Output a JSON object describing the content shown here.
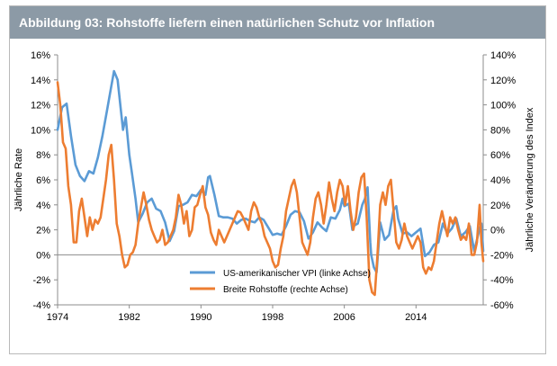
{
  "title": "Abbildung 03: Rohstoffe liefern einen natürlichen Schutz vor Inflation",
  "chart_data": {
    "type": "line",
    "title": "Abbildung 03: Rohstoffe liefern einen natürlichen Schutz vor Inflation",
    "ylabel_left": "Jährliche Rate",
    "ylabel_right": "Jährliche Veränderung des Index",
    "xlim": [
      1974,
      2021.5
    ],
    "ylim_left": [
      -4,
      16
    ],
    "ylim_right": [
      -60,
      140
    ],
    "x_ticks": [
      1974,
      1982,
      1990,
      1998,
      2006,
      2014
    ],
    "y_ticks_left": [
      "-4%",
      "-2%",
      "0%",
      "2%",
      "4%",
      "6%",
      "8%",
      "10%",
      "12%",
      "14%",
      "16%"
    ],
    "y_ticks_right": [
      "-60%",
      "-40%",
      "-20%",
      "0%",
      "20%",
      "40%",
      "60%",
      "80%",
      "100%",
      "120%",
      "140%"
    ],
    "grid": false,
    "legend_position": "bottom-center",
    "series": [
      {
        "name": "US-amerikanischer VPI (linke Achse)",
        "axis": "left",
        "color": "#5b9bd5",
        "points": [
          [
            1974,
            10.0
          ],
          [
            1974.5,
            11.8
          ],
          [
            1975,
            12.1
          ],
          [
            1975.5,
            9.5
          ],
          [
            1976,
            7.2
          ],
          [
            1976.5,
            6.3
          ],
          [
            1977,
            5.9
          ],
          [
            1977.5,
            6.7
          ],
          [
            1978,
            6.5
          ],
          [
            1978.5,
            7.8
          ],
          [
            1979,
            9.5
          ],
          [
            1979.5,
            11.5
          ],
          [
            1980,
            13.5
          ],
          [
            1980.3,
            14.7
          ],
          [
            1980.7,
            14.0
          ],
          [
            1981,
            12.0
          ],
          [
            1981.3,
            10.0
          ],
          [
            1981.6,
            11.0
          ],
          [
            1982,
            8.0
          ],
          [
            1982.3,
            6.5
          ],
          [
            1982.7,
            4.5
          ],
          [
            1983,
            2.6
          ],
          [
            1983.5,
            3.3
          ],
          [
            1984,
            4.2
          ],
          [
            1984.5,
            4.5
          ],
          [
            1985,
            3.7
          ],
          [
            1985.5,
            3.5
          ],
          [
            1986,
            2.6
          ],
          [
            1986.5,
            1.1
          ],
          [
            1987,
            1.9
          ],
          [
            1987.5,
            3.9
          ],
          [
            1988,
            4.0
          ],
          [
            1988.5,
            4.2
          ],
          [
            1989,
            4.8
          ],
          [
            1989.5,
            4.7
          ],
          [
            1990,
            5.2
          ],
          [
            1990.5,
            4.8
          ],
          [
            1990.8,
            6.2
          ],
          [
            1991,
            6.3
          ],
          [
            1991.5,
            4.8
          ],
          [
            1992,
            3.1
          ],
          [
            1992.5,
            3.0
          ],
          [
            1993,
            3.0
          ],
          [
            1993.5,
            2.9
          ],
          [
            1994,
            2.5
          ],
          [
            1994.5,
            2.8
          ],
          [
            1995,
            2.9
          ],
          [
            1995.5,
            2.7
          ],
          [
            1996,
            2.6
          ],
          [
            1996.5,
            3.0
          ],
          [
            1997,
            2.8
          ],
          [
            1997.5,
            2.2
          ],
          [
            1998,
            1.6
          ],
          [
            1998.5,
            1.7
          ],
          [
            1999,
            1.6
          ],
          [
            1999.5,
            2.3
          ],
          [
            2000,
            3.2
          ],
          [
            2000.5,
            3.5
          ],
          [
            2001,
            3.4
          ],
          [
            2001.5,
            2.7
          ],
          [
            2002,
            1.3
          ],
          [
            2002.5,
            1.8
          ],
          [
            2003,
            2.6
          ],
          [
            2003.5,
            2.2
          ],
          [
            2004,
            1.9
          ],
          [
            2004.5,
            3.0
          ],
          [
            2005,
            2.9
          ],
          [
            2005.5,
            3.6
          ],
          [
            2005.8,
            4.5
          ],
          [
            2006,
            3.9
          ],
          [
            2006.5,
            4.1
          ],
          [
            2006.9,
            2.0
          ],
          [
            2007,
            2.3
          ],
          [
            2007.5,
            2.5
          ],
          [
            2008,
            4.0
          ],
          [
            2008.3,
            4.5
          ],
          [
            2008.6,
            5.4
          ],
          [
            2008.9,
            1.0
          ],
          [
            2009,
            0.0
          ],
          [
            2009.3,
            -1.0
          ],
          [
            2009.6,
            -1.4
          ],
          [
            2009.9,
            1.5
          ],
          [
            2010,
            2.6
          ],
          [
            2010.5,
            1.2
          ],
          [
            2011,
            1.6
          ],
          [
            2011.5,
            3.6
          ],
          [
            2011.8,
            3.9
          ],
          [
            2012,
            2.9
          ],
          [
            2012.5,
            1.7
          ],
          [
            2013,
            1.8
          ],
          [
            2013.5,
            1.5
          ],
          [
            2014,
            1.8
          ],
          [
            2014.5,
            2.1
          ],
          [
            2015,
            -0.1
          ],
          [
            2015.5,
            0.2
          ],
          [
            2016,
            0.8
          ],
          [
            2016.5,
            1.0
          ],
          [
            2017,
            2.5
          ],
          [
            2017.5,
            1.7
          ],
          [
            2018,
            2.1
          ],
          [
            2018.5,
            2.9
          ],
          [
            2019,
            1.5
          ],
          [
            2019.5,
            1.8
          ],
          [
            2020,
            2.3
          ],
          [
            2020.5,
            0.3
          ],
          [
            2021,
            1.8
          ],
          [
            2021.3,
            2.5
          ],
          [
            2021.5,
            0.3
          ]
        ]
      },
      {
        "name": "Breite Rohstoffe (rechte Achse)",
        "axis": "right",
        "color": "#ed7d31",
        "points": [
          [
            1974,
            118
          ],
          [
            1974.3,
            100
          ],
          [
            1974.6,
            70
          ],
          [
            1974.9,
            65
          ],
          [
            1975.2,
            35
          ],
          [
            1975.5,
            20
          ],
          [
            1975.8,
            -10
          ],
          [
            1976.1,
            -10
          ],
          [
            1976.4,
            15
          ],
          [
            1976.7,
            25
          ],
          [
            1977,
            10
          ],
          [
            1977.3,
            -5
          ],
          [
            1977.6,
            10
          ],
          [
            1977.9,
            0
          ],
          [
            1978.2,
            8
          ],
          [
            1978.5,
            5
          ],
          [
            1978.8,
            10
          ],
          [
            1979.1,
            25
          ],
          [
            1979.4,
            40
          ],
          [
            1979.7,
            60
          ],
          [
            1980,
            68
          ],
          [
            1980.3,
            40
          ],
          [
            1980.6,
            5
          ],
          [
            1980.9,
            -5
          ],
          [
            1981.2,
            -20
          ],
          [
            1981.5,
            -30
          ],
          [
            1981.8,
            -28
          ],
          [
            1982.1,
            -20
          ],
          [
            1982.4,
            -18
          ],
          [
            1982.7,
            -12
          ],
          [
            1983,
            5
          ],
          [
            1983.3,
            18
          ],
          [
            1983.6,
            30
          ],
          [
            1983.9,
            20
          ],
          [
            1984.2,
            8
          ],
          [
            1984.5,
            0
          ],
          [
            1984.8,
            -5
          ],
          [
            1985.1,
            -10
          ],
          [
            1985.4,
            -8
          ],
          [
            1985.7,
            0
          ],
          [
            1986,
            -12
          ],
          [
            1986.3,
            -10
          ],
          [
            1986.6,
            -5
          ],
          [
            1986.9,
            0
          ],
          [
            1987.2,
            10
          ],
          [
            1987.5,
            28
          ],
          [
            1987.8,
            20
          ],
          [
            1988.1,
            5
          ],
          [
            1988.4,
            15
          ],
          [
            1988.7,
            -5
          ],
          [
            1989,
            0
          ],
          [
            1989.3,
            18
          ],
          [
            1989.6,
            20
          ],
          [
            1989.9,
            28
          ],
          [
            1990.2,
            35
          ],
          [
            1990.5,
            18
          ],
          [
            1990.8,
            12
          ],
          [
            1991.1,
            -2
          ],
          [
            1991.4,
            -8
          ],
          [
            1991.7,
            -12
          ],
          [
            1992,
            0
          ],
          [
            1992.3,
            -5
          ],
          [
            1992.6,
            -10
          ],
          [
            1992.9,
            -5
          ],
          [
            1993.2,
            0
          ],
          [
            1993.5,
            5
          ],
          [
            1993.8,
            10
          ],
          [
            1994.1,
            15
          ],
          [
            1994.4,
            14
          ],
          [
            1994.7,
            10
          ],
          [
            1995,
            5
          ],
          [
            1995.3,
            0
          ],
          [
            1995.6,
            15
          ],
          [
            1995.9,
            22
          ],
          [
            1996.2,
            18
          ],
          [
            1996.5,
            10
          ],
          [
            1996.8,
            5
          ],
          [
            1997.1,
            -5
          ],
          [
            1997.4,
            -10
          ],
          [
            1997.7,
            -15
          ],
          [
            1998,
            -25
          ],
          [
            1998.3,
            -30
          ],
          [
            1998.6,
            -28
          ],
          [
            1998.9,
            -15
          ],
          [
            1999.2,
            -5
          ],
          [
            1999.5,
            15
          ],
          [
            1999.8,
            25
          ],
          [
            2000.1,
            35
          ],
          [
            2000.4,
            40
          ],
          [
            2000.7,
            30
          ],
          [
            2001,
            10
          ],
          [
            2001.3,
            -10
          ],
          [
            2001.6,
            -15
          ],
          [
            2001.9,
            -20
          ],
          [
            2002.2,
            -10
          ],
          [
            2002.5,
            10
          ],
          [
            2002.8,
            25
          ],
          [
            2003.1,
            30
          ],
          [
            2003.4,
            20
          ],
          [
            2003.7,
            5
          ],
          [
            2004,
            20
          ],
          [
            2004.3,
            38
          ],
          [
            2004.6,
            25
          ],
          [
            2004.9,
            15
          ],
          [
            2005.2,
            30
          ],
          [
            2005.5,
            40
          ],
          [
            2005.8,
            35
          ],
          [
            2006.1,
            20
          ],
          [
            2006.4,
            35
          ],
          [
            2006.7,
            15
          ],
          [
            2007,
            0
          ],
          [
            2007.3,
            10
          ],
          [
            2007.6,
            30
          ],
          [
            2007.9,
            42
          ],
          [
            2008.2,
            45
          ],
          [
            2008.5,
            10
          ],
          [
            2008.8,
            -40
          ],
          [
            2009.1,
            -50
          ],
          [
            2009.4,
            -52
          ],
          [
            2009.7,
            -20
          ],
          [
            2010,
            20
          ],
          [
            2010.3,
            30
          ],
          [
            2010.6,
            20
          ],
          [
            2010.9,
            35
          ],
          [
            2011.2,
            40
          ],
          [
            2011.5,
            15
          ],
          [
            2011.8,
            -10
          ],
          [
            2012.1,
            -15
          ],
          [
            2012.4,
            -8
          ],
          [
            2012.7,
            5
          ],
          [
            2013,
            -5
          ],
          [
            2013.3,
            -10
          ],
          [
            2013.6,
            -15
          ],
          [
            2013.9,
            -10
          ],
          [
            2014.2,
            -5
          ],
          [
            2014.5,
            -10
          ],
          [
            2014.8,
            -30
          ],
          [
            2015.1,
            -35
          ],
          [
            2015.4,
            -30
          ],
          [
            2015.7,
            -32
          ],
          [
            2016,
            -25
          ],
          [
            2016.3,
            -10
          ],
          [
            2016.6,
            5
          ],
          [
            2016.9,
            15
          ],
          [
            2017.2,
            5
          ],
          [
            2017.5,
            -5
          ],
          [
            2017.8,
            10
          ],
          [
            2018.1,
            5
          ],
          [
            2018.4,
            10
          ],
          [
            2018.7,
            0
          ],
          [
            2019,
            -8
          ],
          [
            2019.3,
            -5
          ],
          [
            2019.6,
            -8
          ],
          [
            2019.9,
            5
          ],
          [
            2020.2,
            -20
          ],
          [
            2020.5,
            -20
          ],
          [
            2020.8,
            -10
          ],
          [
            2021.1,
            20
          ],
          [
            2021.3,
            -10
          ],
          [
            2021.5,
            -25
          ]
        ]
      }
    ]
  }
}
